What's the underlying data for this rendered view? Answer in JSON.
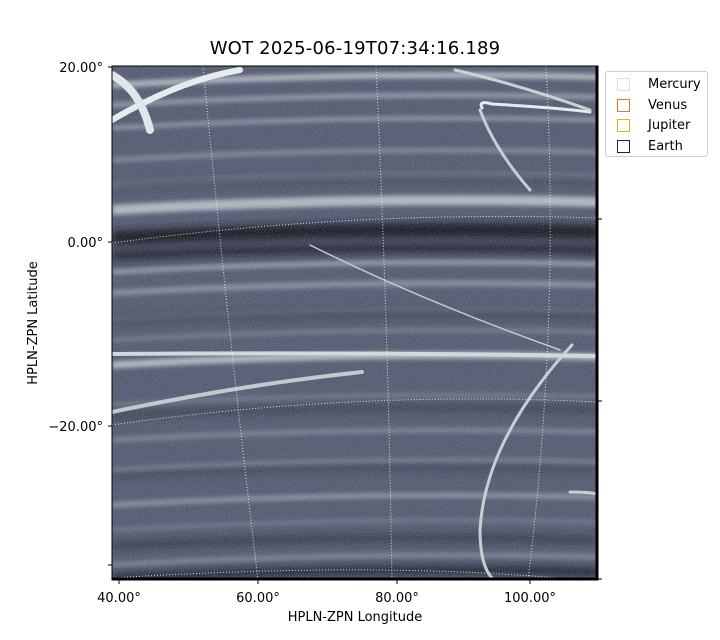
{
  "title": "WOT 2025-06-19T07:34:16.189",
  "chart_data": {
    "type": "heatmap",
    "description_kind": "solar heliospheric imager panel in HPLN-ZPN projection",
    "xlabel": "HPLN-ZPN Longitude",
    "ylabel": "HPLN-ZPN Latitude",
    "x_ticks": [
      "40.00°",
      "60.00°",
      "80.00°",
      "100.00°"
    ],
    "x_tick_values": [
      40,
      60,
      80,
      100
    ],
    "y_ticks": [
      "20.00°",
      "0.00°",
      "−20.00°"
    ],
    "y_tick_values": [
      20,
      0,
      -20
    ],
    "xlim": [
      39,
      109
    ],
    "ylim": [
      -37,
      20
    ],
    "grid": true,
    "colormap": "bone",
    "legend_position": "upper-right-outside",
    "legend": [
      {
        "name": "Mercury",
        "color": "#dddddd"
      },
      {
        "name": "Venus",
        "color": "#e07b39"
      },
      {
        "name": "Jupiter",
        "color": "#e6b21a"
      },
      {
        "name": "Earth",
        "color": "#1a1a6e"
      }
    ]
  }
}
